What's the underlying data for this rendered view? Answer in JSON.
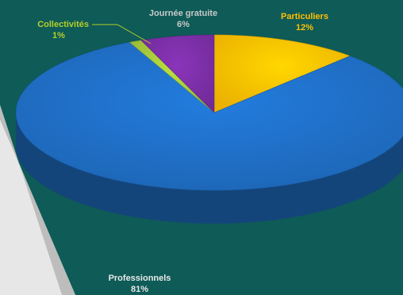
{
  "chart_data": {
    "type": "pie",
    "title": "",
    "slices": [
      {
        "label": "Particuliers",
        "percent_label": "12%",
        "value": 12,
        "color": "#ffc000",
        "label_color": "#ffc000"
      },
      {
        "label": "Professionnels",
        "percent_label": "81%",
        "value": 81,
        "color": "#1f6fc6",
        "label_color": "#e8e8e8"
      },
      {
        "label": "Collectivités",
        "percent_label": "1%",
        "value": 1,
        "color": "#a5c83a",
        "label_color": "#b5cf2a"
      },
      {
        "label": "Journée gratuite",
        "percent_label": "6%",
        "value": 6,
        "color": "#7b2fa6",
        "label_color": "#c9c9c9"
      }
    ],
    "style": "3d",
    "legend": "none"
  },
  "colors": {
    "background": "#0e5b57",
    "stripe": "#d9d9d9"
  }
}
